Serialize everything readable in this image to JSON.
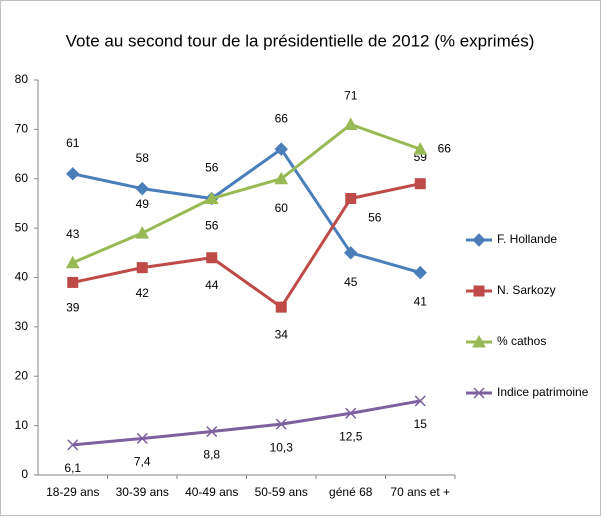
{
  "chart_data": {
    "type": "line",
    "title": "Vote au second tour de la présidentielle de 2012 (% exprimés)",
    "categories": [
      "18-29 ans",
      "30-39 ans",
      "40-49 ans",
      "50-59 ans",
      "géné 68",
      "70 ans et +"
    ],
    "series": [
      {
        "name": "F. Hollande",
        "color": "#4a7ebb",
        "marker": "diamond",
        "values": [
          61,
          58,
          56,
          66,
          45,
          41
        ]
      },
      {
        "name": "N. Sarkozy",
        "color": "#be4b48",
        "marker": "square",
        "values": [
          39,
          42,
          44,
          34,
          56,
          59
        ]
      },
      {
        "name": "% cathos",
        "color": "#98b954",
        "marker": "triangle",
        "values": [
          43,
          49,
          56,
          60,
          71,
          66
        ]
      },
      {
        "name": "Indice patrimoine",
        "color": "#7d60a0",
        "marker": "x",
        "values": [
          6.1,
          7.4,
          8.8,
          10.3,
          12.5,
          15
        ],
        "value_labels": [
          "6,1",
          "7,4",
          "8,8",
          "10,3",
          "12,5",
          "15"
        ]
      }
    ],
    "ylim": [
      0,
      80
    ],
    "yticks": [
      0,
      10,
      20,
      30,
      40,
      50,
      60,
      70,
      80
    ],
    "grid": false,
    "legend": "right"
  }
}
